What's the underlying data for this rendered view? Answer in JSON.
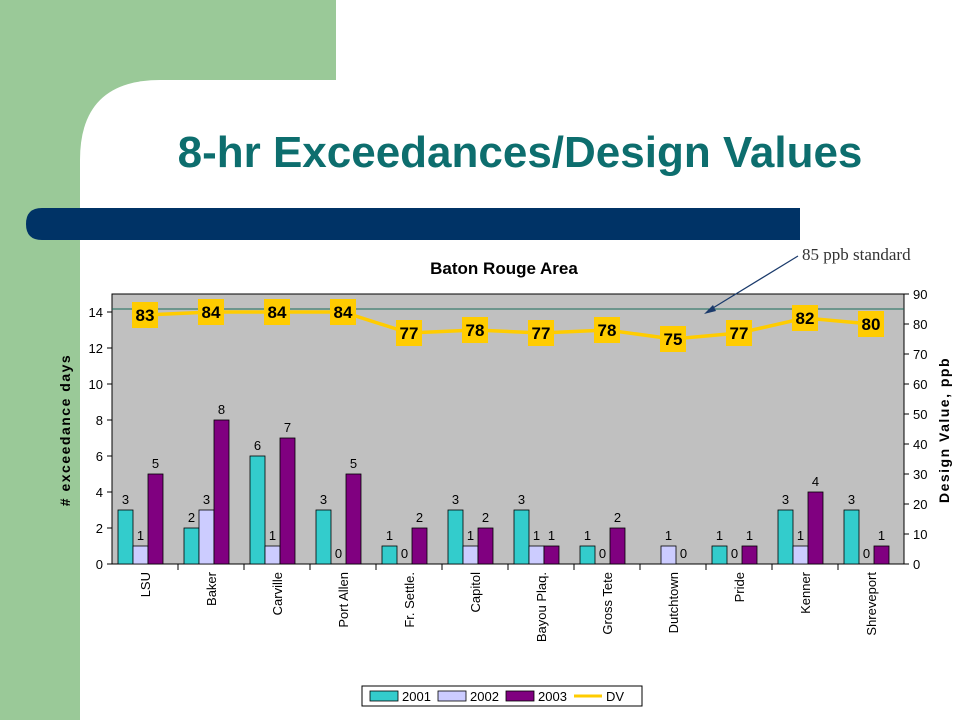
{
  "slide": {
    "title": "8-hr Exceedances/Design Values",
    "annotation": "85 ppb standard",
    "colors": {
      "green_band": "#9ac998",
      "navy_bar": "#003366",
      "title": "#0d6e6e"
    }
  },
  "chart_data": {
    "type": "bar",
    "title": "Baton Rouge Area",
    "ylabel": "# exceedance days",
    "y2label": "Design Value, ppb",
    "ylim": [
      0,
      15
    ],
    "y2lim": [
      0,
      90
    ],
    "yticks": [
      "0",
      "2",
      "4",
      "6",
      "8",
      "10",
      "12",
      "14"
    ],
    "y2ticks": [
      "0",
      "10",
      "20",
      "30",
      "40",
      "50",
      "60",
      "70",
      "80",
      "90"
    ],
    "categories": [
      "LSU",
      "Baker",
      "Carville",
      "Port Allen",
      "Fr. Settle.",
      "Capitol",
      "Bayou Plaq.",
      "Gross Tete",
      "Dutchtown",
      "Pride",
      "Kenner",
      "Shreveport"
    ],
    "series": [
      {
        "name": "2001",
        "color": "#33cccc",
        "values": [
          3,
          2,
          6,
          3,
          1,
          3,
          3,
          1,
          null,
          1,
          3,
          3
        ]
      },
      {
        "name": "2002",
        "color": "#ccccff",
        "values": [
          1,
          3,
          1,
          0,
          0,
          1,
          1,
          0,
          1,
          0,
          1,
          0
        ]
      },
      {
        "name": "2003",
        "color": "#800080",
        "values": [
          5,
          8,
          7,
          5,
          2,
          2,
          1,
          2,
          0,
          1,
          4,
          1
        ]
      }
    ],
    "line": {
      "name": "DV",
      "color": "#ffcc00",
      "values": [
        83,
        84,
        84,
        84,
        77,
        78,
        77,
        78,
        75,
        77,
        82,
        80
      ]
    },
    "reference_value": 85,
    "plot_bg": "#c0c0c0",
    "legend_position": "bottom",
    "grid": false
  }
}
